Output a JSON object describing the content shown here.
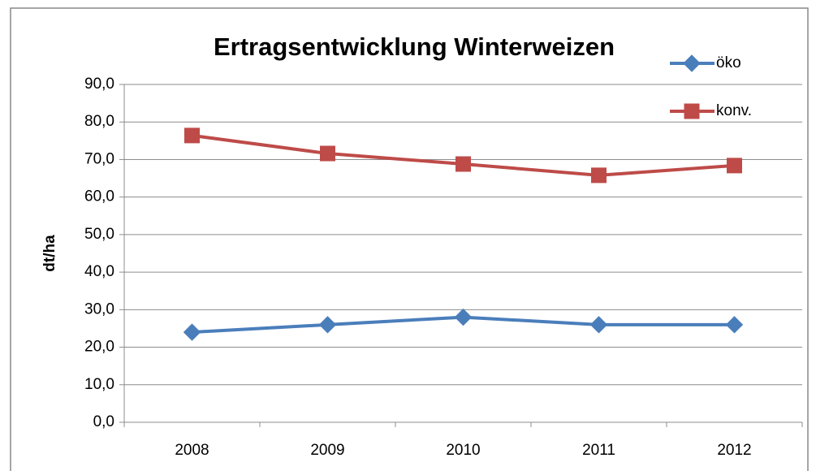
{
  "chart_data": {
    "type": "line",
    "title": "Ertragsentwicklung Winterweizen",
    "y_label": "dt/ha",
    "categories": [
      "2008",
      "2009",
      "2010",
      "2011",
      "2012"
    ],
    "series": [
      {
        "name": "öko",
        "color": "#4a7ebb",
        "marker": "diamond",
        "values": [
          24.0,
          26.0,
          28.0,
          26.0,
          26.0
        ]
      },
      {
        "name": "konv.",
        "color": "#be4b48",
        "marker": "square",
        "values": [
          76.4,
          71.6,
          68.8,
          65.8,
          68.4
        ]
      }
    ],
    "ylim": [
      0,
      90
    ],
    "yticks": [
      {
        "value": 0,
        "label": "0,0"
      },
      {
        "value": 10,
        "label": "10,0"
      },
      {
        "value": 20,
        "label": "20,0"
      },
      {
        "value": 30,
        "label": "30,0"
      },
      {
        "value": 40,
        "label": "40,0"
      },
      {
        "value": 50,
        "label": "50,0"
      },
      {
        "value": 60,
        "label": "60,0"
      },
      {
        "value": 70,
        "label": "70,0"
      },
      {
        "value": 80,
        "label": "80,0"
      },
      {
        "value": 90,
        "label": "90,0"
      }
    ],
    "grid": true,
    "legend": "top-right"
  }
}
